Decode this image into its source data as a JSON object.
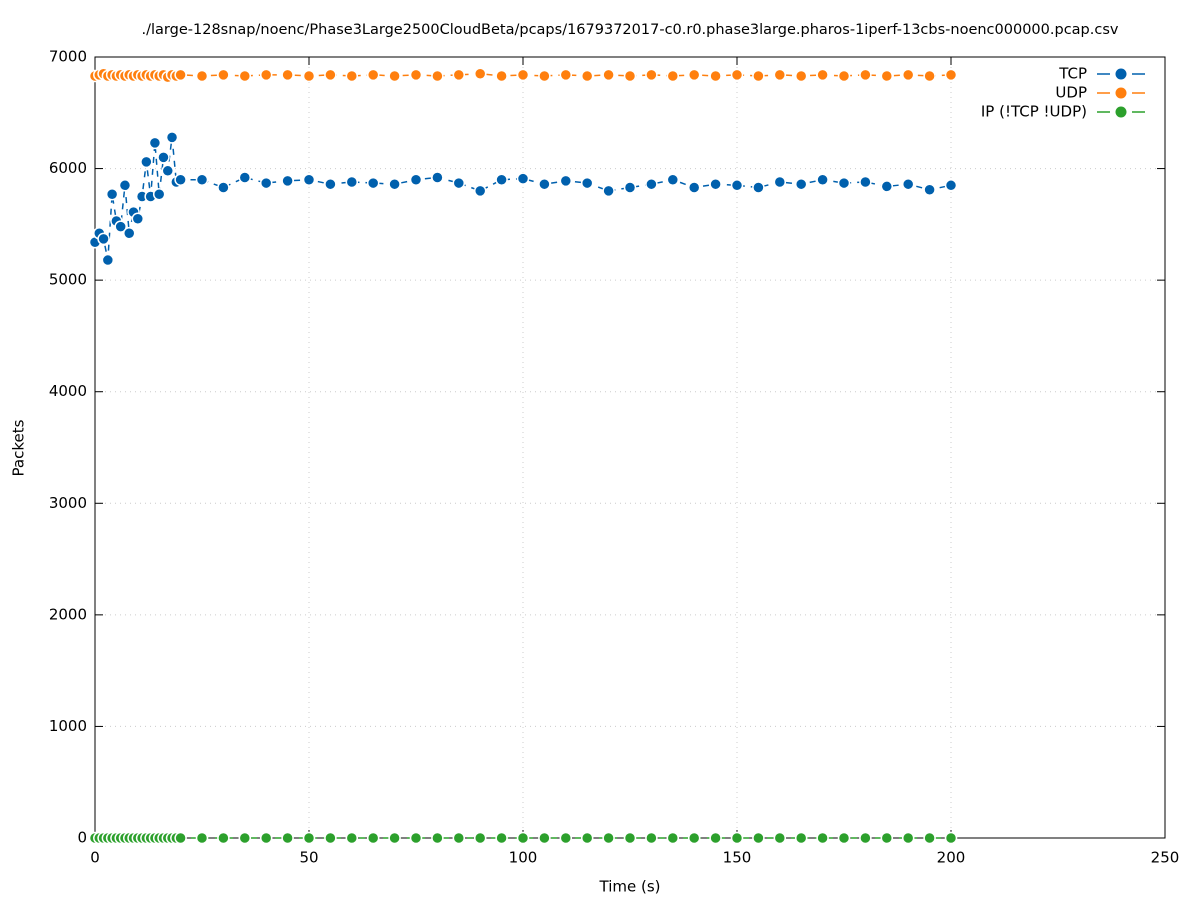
{
  "chart_data": {
    "type": "line",
    "title": "./large-128snap/noenc/Phase3Large2500CloudBeta/pcaps/1679372017-c0.r0.phase3large.pharos-1iperf-13cbs-noenc000000.pcap.csv",
    "x_label": "Time (s)",
    "y_label": "Packets",
    "x": [
      0,
      1,
      2,
      3,
      4,
      5,
      6,
      7,
      8,
      9,
      10,
      11,
      12,
      13,
      14,
      15,
      16,
      17,
      18,
      19,
      20,
      25,
      30,
      35,
      40,
      45,
      50,
      55,
      60,
      65,
      70,
      75,
      80,
      85,
      90,
      95,
      100,
      105,
      110,
      115,
      120,
      125,
      130,
      135,
      140,
      145,
      150,
      155,
      160,
      165,
      170,
      175,
      180,
      185,
      190,
      195,
      200
    ],
    "series": [
      {
        "name": "TCP",
        "color": "#0060ad",
        "values": [
          5340,
          5420,
          5370,
          5180,
          5770,
          5530,
          5480,
          5850,
          5420,
          5610,
          5550,
          5750,
          6060,
          5750,
          6230,
          5770,
          6100,
          5980,
          6280,
          5880,
          5900,
          5900,
          5830,
          5920,
          5870,
          5890,
          5900,
          5860,
          5880,
          5870,
          5860,
          5900,
          5920,
          5870,
          5800,
          5900,
          5910,
          5860,
          5890,
          5870,
          5800,
          5830,
          5860,
          5900,
          5830,
          5860,
          5850,
          5830,
          5880,
          5860,
          5900,
          5870,
          5880,
          5840,
          5860,
          5810,
          5850
        ]
      },
      {
        "name": "UDP",
        "color": "#ff7f0e",
        "values": [
          6830,
          6840,
          6850,
          6830,
          6840,
          6830,
          6840,
          6830,
          6840,
          6830,
          6840,
          6830,
          6840,
          6830,
          6840,
          6830,
          6840,
          6820,
          6840,
          6830,
          6840,
          6830,
          6840,
          6830,
          6840,
          6840,
          6830,
          6840,
          6830,
          6840,
          6830,
          6840,
          6830,
          6840,
          6850,
          6830,
          6840,
          6830,
          6840,
          6830,
          6840,
          6830,
          6840,
          6830,
          6840,
          6830,
          6840,
          6830,
          6840,
          6830,
          6840,
          6830,
          6840,
          6830,
          6840,
          6830,
          6840
        ]
      },
      {
        "name": "IP (!TCP  !UDP)",
        "color": "#2ca02c",
        "values": [
          0,
          0,
          0,
          0,
          0,
          0,
          0,
          0,
          0,
          0,
          0,
          0,
          0,
          0,
          0,
          0,
          0,
          0,
          0,
          0,
          0,
          0,
          0,
          0,
          0,
          0,
          0,
          0,
          0,
          0,
          0,
          0,
          0,
          0,
          0,
          0,
          0,
          0,
          0,
          0,
          0,
          0,
          0,
          0,
          0,
          0,
          0,
          0,
          0,
          0,
          0,
          0,
          0,
          0,
          0,
          0,
          0
        ]
      }
    ],
    "xlim": [
      0,
      250
    ],
    "xticks": [
      0,
      50,
      100,
      150,
      200,
      250
    ],
    "ylim": [
      0,
      7000
    ],
    "yticks": [
      0,
      1000,
      2000,
      3000,
      4000,
      5000,
      6000,
      7000
    ],
    "grid": true,
    "legend": "upper right"
  }
}
